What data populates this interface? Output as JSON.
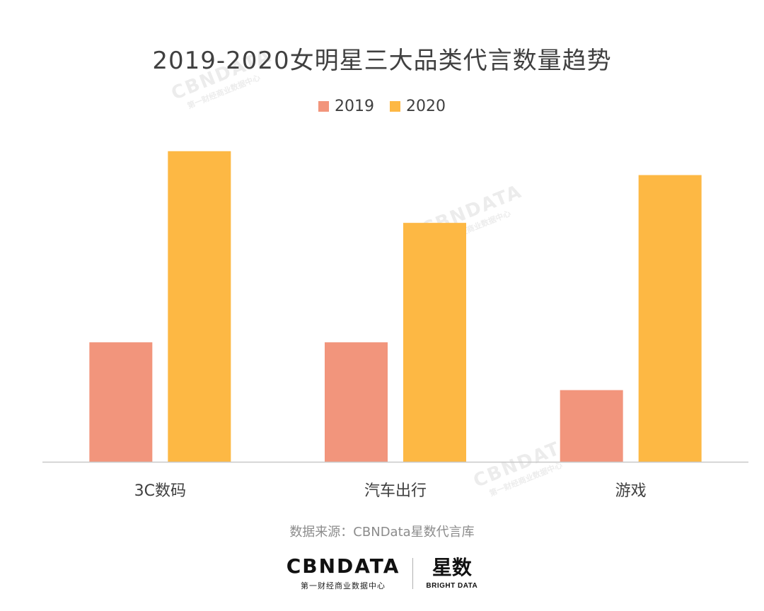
{
  "chart_data": {
    "type": "bar",
    "title": "2019-2020女明星三大品类代言数量趋势",
    "categories": [
      "3C数码",
      "汽车出行",
      "游戏"
    ],
    "series": [
      {
        "name": "2019",
        "values": [
          100,
          100,
          60
        ],
        "color": "#f2957c"
      },
      {
        "name": "2020",
        "values": [
          260,
          200,
          240
        ],
        "color": "#fdb844"
      }
    ],
    "ylim": [
      0,
      280
    ],
    "grid": false,
    "legend": "top-center"
  },
  "source": "数据来源：CBNData星数代言库",
  "brand": {
    "logo1": "CBNDATA",
    "logo1_sub": "第一财经商业数据中心",
    "logo2": "星数",
    "logo2_sub": "BRIGHT DATA"
  },
  "watermark": {
    "text": "CBNDATA",
    "sub": "第一财经商业数据中心"
  }
}
